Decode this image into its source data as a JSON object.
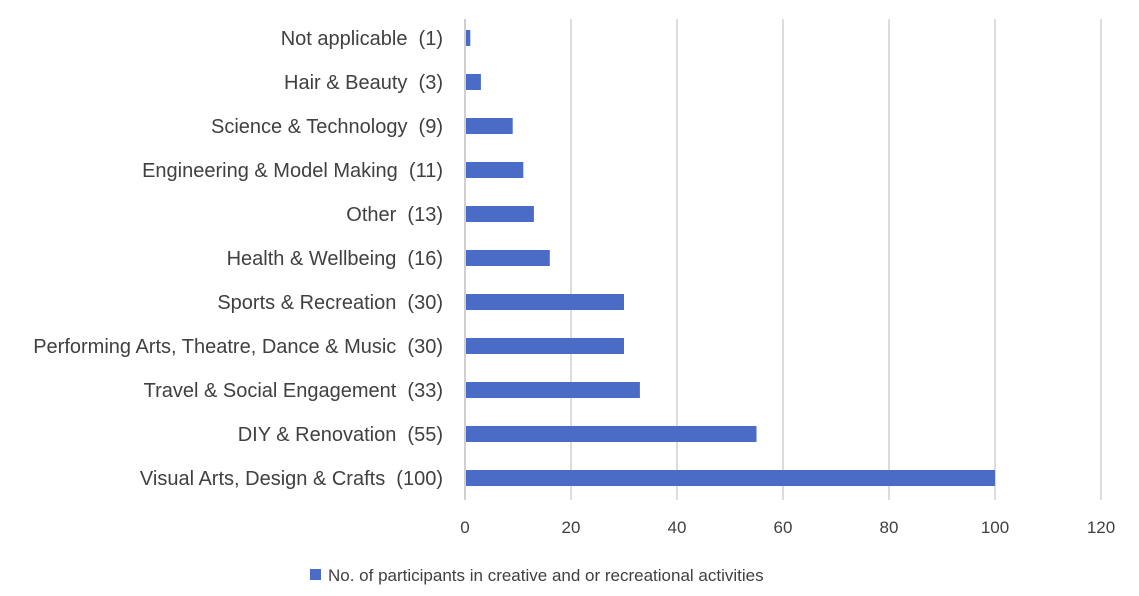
{
  "chart_data": {
    "type": "bar",
    "orientation": "horizontal",
    "categories": [
      "Visual Arts, Design & Crafts  (100)",
      "DIY & Renovation  (55)",
      "Travel & Social Engagement  (33)",
      "Performing Arts, Theatre, Dance & Music  (30)",
      "Sports & Recreation  (30)",
      "Health & Wellbeing  (16)",
      "Other  (13)",
      "Engineering & Model Making  (11)",
      "Science & Technology  (9)",
      "Hair & Beauty  (3)",
      "Not applicable  (1)"
    ],
    "series": [
      {
        "name": "No. of participants in creative and or recreational activities",
        "values": [
          100,
          55,
          33,
          30,
          30,
          16,
          13,
          11,
          9,
          3,
          1
        ],
        "color": "#4a6bc6"
      }
    ],
    "xlim": [
      0,
      120
    ],
    "xticks": [
      0,
      20,
      40,
      60,
      80,
      100,
      120
    ],
    "grid": "vertical",
    "legend_position": "bottom"
  }
}
